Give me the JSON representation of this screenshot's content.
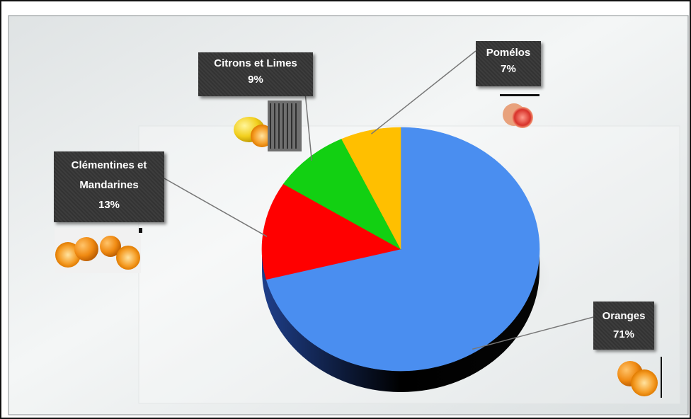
{
  "chart_data": {
    "type": "pie",
    "title": "",
    "slices": [
      {
        "label": "Oranges",
        "value": 71,
        "display": "71%",
        "color": "#4A8EF0"
      },
      {
        "label": "Clémentines et Mandarines",
        "line1": "Clémentines et",
        "line2": "Mandarines",
        "value": 13,
        "display": "13%",
        "color": "#FF0000"
      },
      {
        "label": "Citrons et Limes",
        "value": 9,
        "display": "9%",
        "color": "#12D012"
      },
      {
        "label": "Pomélos",
        "value": 7,
        "display": "7%",
        "color": "#FFBF00"
      }
    ],
    "legend": "none",
    "style": "3d-pie"
  }
}
